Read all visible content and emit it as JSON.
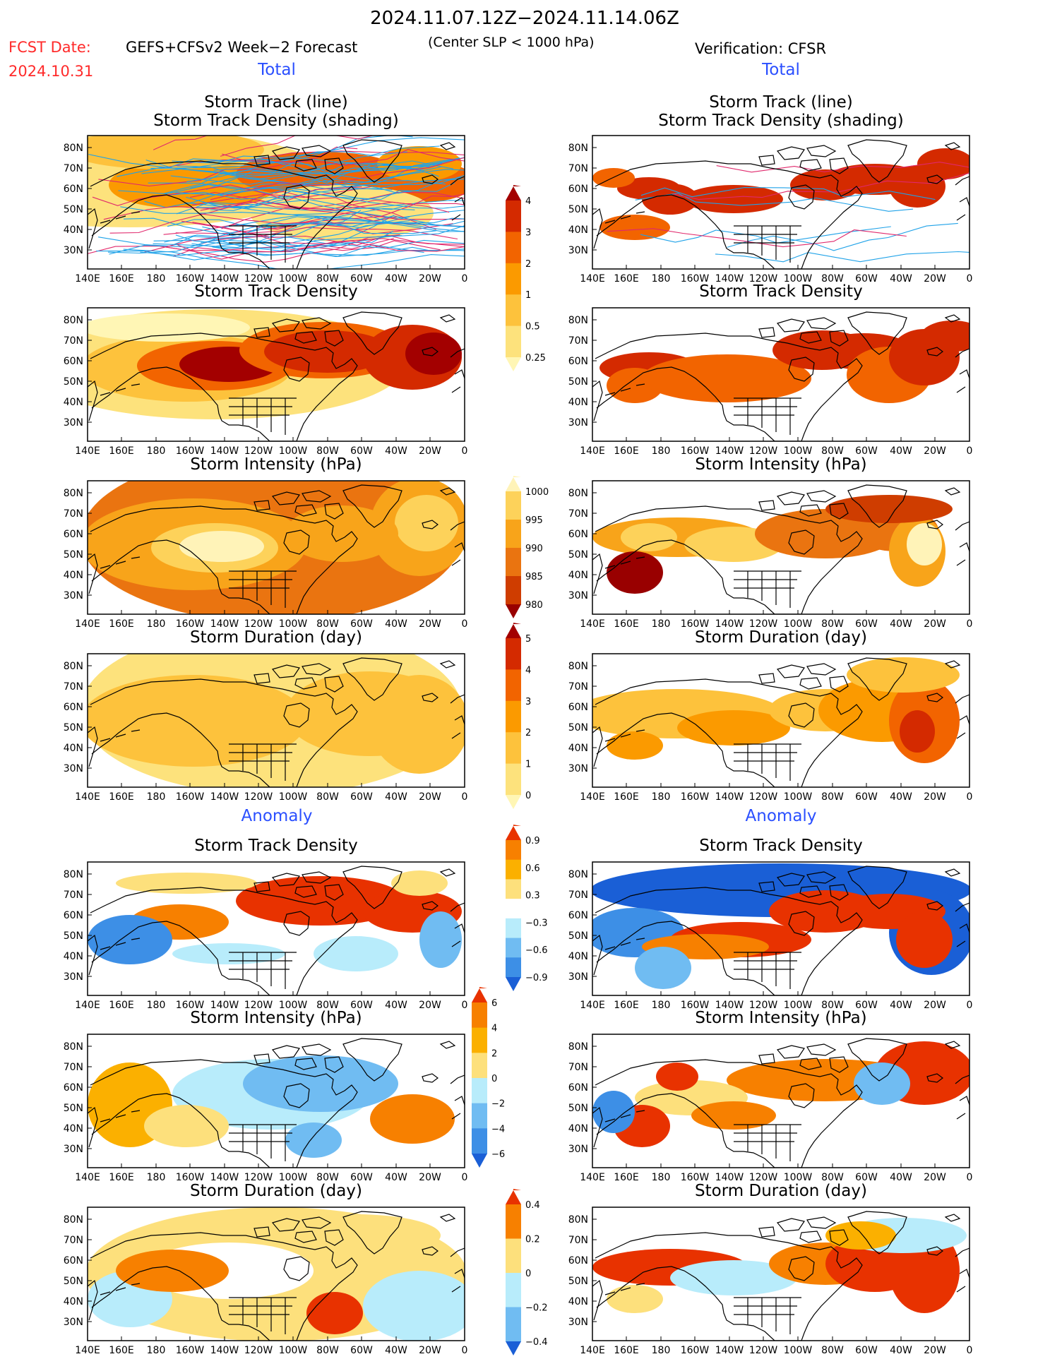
{
  "header": {
    "date_range": "2024.11.07.12Z−2024.11.14.06Z",
    "fcst_label": "FCST Date:",
    "fcst_date": "2024.10.31",
    "forecast_label": "GEFS+CFSv2 Week−2 Forecast",
    "criterion": "(Center SLP < 1000 hPa)",
    "verification_label": "Verification: CFSR"
  },
  "sections": {
    "total": "Total",
    "anomaly": "Anomaly"
  },
  "panel_titles": {
    "track_line": "Storm Track (line)",
    "track_density_shading": "Storm Track Density (shading)",
    "density": "Storm Track Density",
    "intensity": "Storm Intensity (hPa)",
    "duration": "Storm Duration (day)"
  },
  "axes": {
    "lon_ticks": [
      "140E",
      "160E",
      "180",
      "160W",
      "140W",
      "120W",
      "100W",
      "80W",
      "60W",
      "40W",
      "20W",
      "0"
    ],
    "lat_ticks": [
      "30N",
      "40N",
      "50N",
      "60N",
      "70N",
      "80N"
    ]
  },
  "colorbars": [
    {
      "name": "density-total",
      "ticks": [
        "4",
        "3",
        "2",
        "1",
        "0.5",
        "0.25"
      ],
      "colors": [
        "#a30000",
        "#d42a00",
        "#f26400",
        "#fb9a00",
        "#fdc23c",
        "#fde27c",
        "#fff6b5"
      ]
    },
    {
      "name": "intensity-total",
      "ticks": [
        "1000",
        "995",
        "990",
        "985",
        "980"
      ],
      "colors": [
        "#fff3b8",
        "#fdd25a",
        "#f8a41a",
        "#ea7410",
        "#cf3d00",
        "#990000"
      ]
    },
    {
      "name": "duration-total",
      "ticks": [
        "5",
        "4",
        "3",
        "2",
        "1",
        "0"
      ],
      "colors": [
        "#a30000",
        "#d42a00",
        "#f26400",
        "#fb9a00",
        "#fdc23c",
        "#fde27c",
        "#fff6b5"
      ]
    },
    {
      "name": "density-anomaly",
      "ticks": [
        "0.9",
        "0.6",
        "0.3",
        "−0.3",
        "−0.6",
        "−0.9"
      ],
      "colors": [
        "#e83200",
        "#f78000",
        "#fbb000",
        "#fde07c",
        "#ffffff",
        "#b8ecfb",
        "#70bcf2",
        "#3d8fe6",
        "#1a5fd6"
      ]
    },
    {
      "name": "intensity-anomaly",
      "ticks": [
        "6",
        "4",
        "2",
        "0",
        "−2",
        "−4",
        "−6"
      ],
      "colors": [
        "#e83200",
        "#f78000",
        "#fbb000",
        "#fde07c",
        "#b8ecfb",
        "#70bcf2",
        "#3d8fe6",
        "#1a5fd6"
      ]
    },
    {
      "name": "duration-anomaly",
      "ticks": [
        "0.4",
        "0.2",
        "0",
        "−0.2",
        "−0.4"
      ],
      "colors": [
        "#e83200",
        "#f78000",
        "#fde07c",
        "#b8ecfb",
        "#70bcf2",
        "#1a5fd6"
      ]
    }
  ],
  "chart_data": [
    {
      "type": "heatmap",
      "id": "fcst-track",
      "title": "Storm Track (line) / Storm Track Density (shading)",
      "section": "Total",
      "source": "GEFS+CFSv2 Week-2 Forecast",
      "xlim": [
        "140E",
        "0"
      ],
      "ylim": [
        "25N",
        "85N"
      ]
    },
    {
      "type": "heatmap",
      "id": "obs-track",
      "title": "Storm Track (line) / Storm Track Density (shading)",
      "section": "Total",
      "source": "CFSR",
      "xlim": [
        "140E",
        "0"
      ],
      "ylim": [
        "25N",
        "85N"
      ]
    },
    {
      "type": "heatmap",
      "id": "fcst-density",
      "title": "Storm Track Density",
      "section": "Total",
      "legend_ticks": [
        0.25,
        0.5,
        1,
        2,
        3,
        4
      ]
    },
    {
      "type": "heatmap",
      "id": "obs-density",
      "title": "Storm Track Density",
      "section": "Total",
      "legend_ticks": [
        0.25,
        0.5,
        1,
        2,
        3,
        4
      ]
    },
    {
      "type": "heatmap",
      "id": "fcst-intensity",
      "title": "Storm Intensity (hPa)",
      "section": "Total",
      "legend_ticks": [
        980,
        985,
        990,
        995,
        1000
      ]
    },
    {
      "type": "heatmap",
      "id": "obs-intensity",
      "title": "Storm Intensity (hPa)",
      "section": "Total",
      "legend_ticks": [
        980,
        985,
        990,
        995,
        1000
      ]
    },
    {
      "type": "heatmap",
      "id": "fcst-duration",
      "title": "Storm Duration (day)",
      "section": "Total",
      "legend_ticks": [
        0,
        1,
        2,
        3,
        4,
        5
      ]
    },
    {
      "type": "heatmap",
      "id": "obs-duration",
      "title": "Storm Duration (day)",
      "section": "Total",
      "legend_ticks": [
        0,
        1,
        2,
        3,
        4,
        5
      ]
    },
    {
      "type": "heatmap",
      "id": "fcst-density-anom",
      "title": "Storm Track Density",
      "section": "Anomaly",
      "legend_ticks": [
        -0.9,
        -0.6,
        -0.3,
        0.3,
        0.6,
        0.9
      ]
    },
    {
      "type": "heatmap",
      "id": "obs-density-anom",
      "title": "Storm Track Density",
      "section": "Anomaly",
      "legend_ticks": [
        -0.9,
        -0.6,
        -0.3,
        0.3,
        0.6,
        0.9
      ]
    },
    {
      "type": "heatmap",
      "id": "fcst-intensity-anom",
      "title": "Storm Intensity (hPa)",
      "section": "Anomaly",
      "legend_ticks": [
        -6,
        -4,
        -2,
        0,
        2,
        4,
        6
      ]
    },
    {
      "type": "heatmap",
      "id": "obs-intensity-anom",
      "title": "Storm Intensity (hPa)",
      "section": "Anomaly",
      "legend_ticks": [
        -6,
        -4,
        -2,
        0,
        2,
        4,
        6
      ]
    },
    {
      "type": "heatmap",
      "id": "fcst-duration-anom",
      "title": "Storm Duration (day)",
      "section": "Anomaly",
      "legend_ticks": [
        -0.4,
        -0.2,
        0,
        0.2,
        0.4
      ]
    },
    {
      "type": "heatmap",
      "id": "obs-duration-anom",
      "title": "Storm Duration (day)",
      "section": "Anomaly",
      "legend_ticks": [
        -0.4,
        -0.2,
        0,
        0.2,
        0.4
      ]
    }
  ]
}
